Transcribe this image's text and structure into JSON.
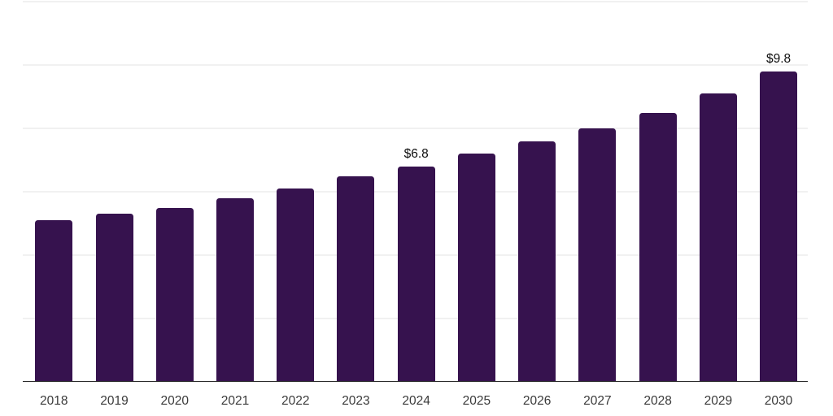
{
  "chart_data": {
    "type": "bar",
    "title": "",
    "xlabel": "",
    "ylabel": "",
    "categories": [
      "2018",
      "2019",
      "2020",
      "2021",
      "2022",
      "2023",
      "2024",
      "2025",
      "2026",
      "2027",
      "2028",
      "2029",
      "2030"
    ],
    "values": [
      5.1,
      5.3,
      5.5,
      5.8,
      6.1,
      6.5,
      6.8,
      7.2,
      7.6,
      8.0,
      8.5,
      9.1,
      9.8
    ],
    "data_labels": {
      "2024": "$6.8",
      "2030": "$9.8"
    },
    "ylim": [
      0,
      12
    ],
    "gridline_values": [
      2,
      4,
      6,
      8,
      10,
      12
    ],
    "grid": "horizontal-only",
    "legend": "none",
    "colors": {
      "bar": "#36124e",
      "axis_line": "#2b2b2b",
      "gridline": "#f1f1f1",
      "tick_label": "#3a3a3a",
      "data_label": "#0f0f0f",
      "background": "#ffffff"
    }
  }
}
